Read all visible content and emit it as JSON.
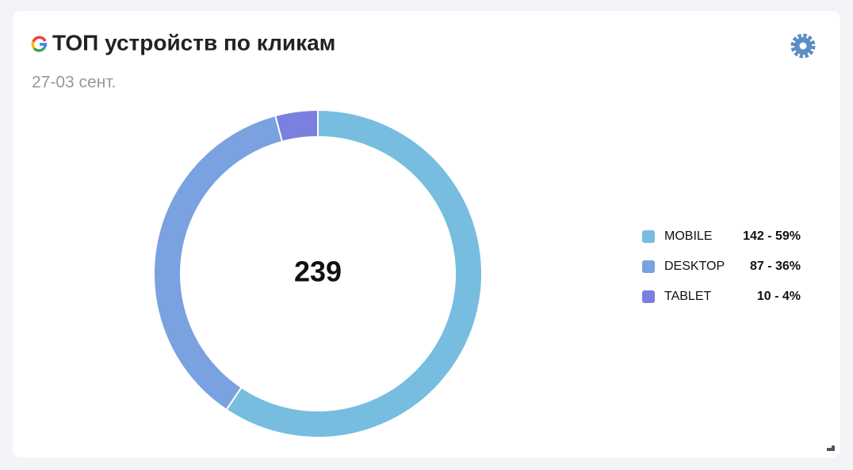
{
  "chart_data": {
    "type": "pie",
    "title": "ТОП устройств по кликам",
    "subtitle": "27-03 сент.",
    "total": 239,
    "categories": [
      "MOBILE",
      "DESKTOP",
      "TABLET"
    ],
    "values": [
      142,
      87,
      10
    ],
    "value_labels": [
      "142 - 59%",
      "87 - 36%",
      "10 - 4%"
    ],
    "colors": [
      "#77bde0",
      "#7aa1e0",
      "#7b7fe0"
    ]
  }
}
